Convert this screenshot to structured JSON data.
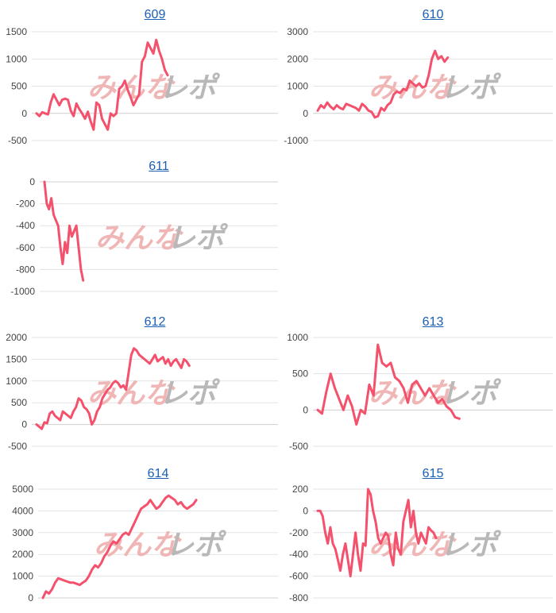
{
  "chart_data": [
    {
      "type": "line",
      "title": "609",
      "ylim": [
        -500,
        1500
      ],
      "yticks": [
        -500,
        0,
        500,
        1000,
        1500
      ],
      "series_color": "#f4516c",
      "values": [
        0,
        -50,
        20,
        0,
        -20,
        200,
        350,
        250,
        150,
        250,
        270,
        250,
        50,
        -50,
        180,
        80,
        0,
        -100,
        30,
        -150,
        -300,
        200,
        150,
        -100,
        -200,
        -300,
        0,
        -50,
        0,
        450,
        500,
        600,
        430,
        300,
        150,
        250,
        350,
        950,
        1050,
        1300,
        1200,
        1100,
        1350,
        1150,
        1000,
        800,
        700
      ]
    },
    {
      "type": "line",
      "title": "610",
      "ylim": [
        -1000,
        3000
      ],
      "yticks": [
        -1000,
        0,
        1000,
        2000,
        3000
      ],
      "series_color": "#f4516c",
      "values": [
        100,
        300,
        200,
        400,
        250,
        150,
        300,
        200,
        150,
        350,
        300,
        250,
        200,
        100,
        350,
        250,
        100,
        50,
        -150,
        -100,
        200,
        100,
        300,
        400,
        700,
        800,
        750,
        900,
        850,
        1200,
        1100,
        1000,
        1100,
        950,
        1000,
        1400,
        2000,
        2300,
        2000,
        2100,
        1900,
        2050
      ]
    },
    {
      "type": "line",
      "title": "611",
      "ylim": [
        -1000,
        0
      ],
      "yticks": [
        -1000,
        -800,
        -600,
        -400,
        -200,
        0
      ],
      "series_color": "#f4516c",
      "values": [
        0,
        -200,
        -250,
        -150,
        -300,
        -350,
        -400,
        -600,
        -750,
        -550,
        -650,
        -400,
        -500,
        -450,
        -400,
        -600,
        -800,
        -900
      ]
    },
    {
      "type": "line",
      "title": "612",
      "ylim": [
        -500,
        2000
      ],
      "yticks": [
        -500,
        0,
        500,
        1000,
        1500,
        2000
      ],
      "series_color": "#f4516c",
      "values": [
        0,
        -50,
        -100,
        50,
        30,
        250,
        300,
        200,
        150,
        100,
        300,
        250,
        200,
        150,
        300,
        400,
        600,
        550,
        400,
        350,
        250,
        0,
        100,
        300,
        400,
        600,
        700,
        800,
        850,
        950,
        1000,
        950,
        850,
        900,
        800,
        1200,
        1600,
        1750,
        1700,
        1600,
        1550,
        1500,
        1450,
        1400,
        1500,
        1600,
        1450,
        1500,
        1550,
        1400,
        1500,
        1350,
        1450,
        1500,
        1400,
        1300,
        1500,
        1450,
        1350
      ]
    },
    {
      "type": "line",
      "title": "613",
      "ylim": [
        -500,
        1000
      ],
      "yticks": [
        -500,
        0,
        500,
        1000
      ],
      "series_color": "#f4516c",
      "values": [
        0,
        -50,
        250,
        500,
        300,
        150,
        0,
        200,
        50,
        -200,
        0,
        -50,
        350,
        200,
        900,
        650,
        600,
        650,
        450,
        400,
        300,
        100,
        350,
        400,
        300,
        200,
        300,
        200,
        100,
        150,
        50,
        0,
        -100,
        -120
      ]
    },
    {
      "type": "line",
      "title": "614",
      "ylim": [
        0,
        5000
      ],
      "yticks": [
        0,
        1000,
        2000,
        3000,
        4000,
        5000
      ],
      "series_color": "#f4516c",
      "values": [
        0,
        300,
        200,
        400,
        700,
        900,
        850,
        800,
        750,
        700,
        700,
        650,
        600,
        700,
        800,
        1000,
        1300,
        1500,
        1400,
        1600,
        1900,
        2100,
        2400,
        2600,
        2500,
        2700,
        2900,
        3000,
        2900,
        3200,
        3500,
        3800,
        4100,
        4200,
        4300,
        4500,
        4300,
        4100,
        4200,
        4400,
        4600,
        4700,
        4600,
        4500,
        4300,
        4400,
        4200,
        4100,
        4200,
        4300,
        4500
      ]
    },
    {
      "type": "line",
      "title": "615",
      "ylim": [
        -800,
        200
      ],
      "yticks": [
        -800,
        -600,
        -400,
        -200,
        0,
        200
      ],
      "series_color": "#f4516c",
      "values": [
        0,
        0,
        -50,
        -200,
        -300,
        -150,
        -300,
        -350,
        -450,
        -550,
        -400,
        -300,
        -450,
        -600,
        -400,
        -200,
        -400,
        -550,
        -300,
        -320,
        200,
        150,
        0,
        -100,
        -250,
        -300,
        -250,
        -200,
        -230,
        -400,
        -500,
        -200,
        -350,
        -400,
        -100,
        0,
        100,
        -150,
        0,
        -200,
        -300,
        -200,
        -250,
        -300,
        -150,
        -180,
        -200,
        -250
      ]
    }
  ],
  "watermark": {
    "part1": "みんな",
    "part2": "レポ"
  }
}
